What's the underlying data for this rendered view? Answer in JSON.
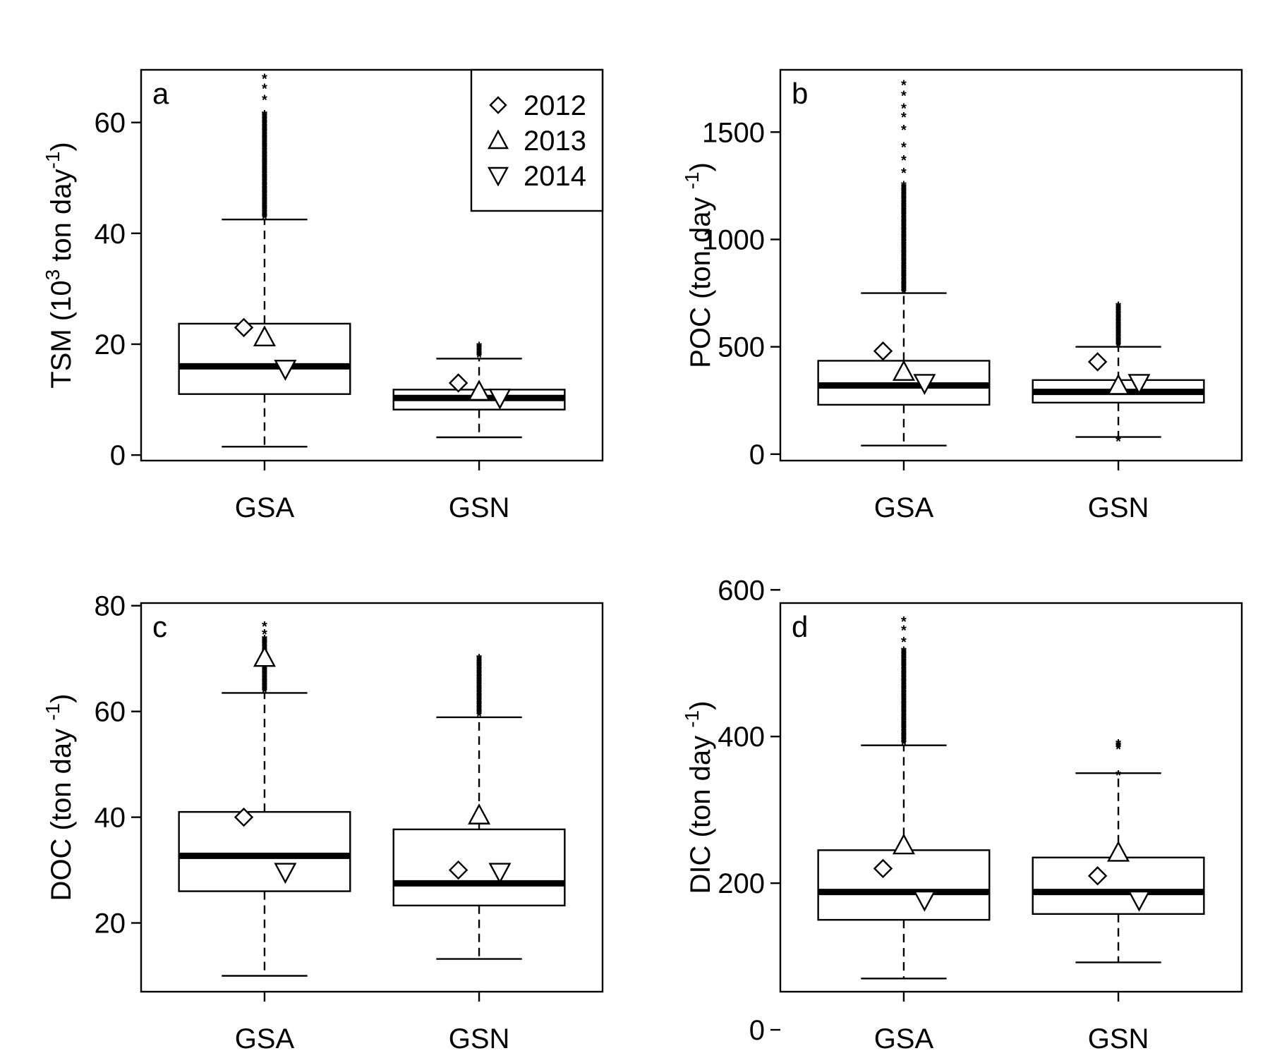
{
  "chart_data": [
    {
      "type": "box",
      "panel_label": "a",
      "ylabel": "TSM (10",
      "ylabel_sup": "3",
      "ylabel_mid": " ton day",
      "ylabel_sup2": "-1",
      "ylabel_end": ")",
      "yticks": [
        0,
        20,
        40,
        60
      ],
      "ylim": [
        -1,
        69.5
      ],
      "categories": [
        "GSA",
        "GSN"
      ],
      "legend": {
        "position": "top-right",
        "entries": [
          {
            "marker": "diamond",
            "label": "2012"
          },
          {
            "marker": "triangle-up",
            "label": "2013"
          },
          {
            "marker": "triangle-down",
            "label": "2014"
          }
        ]
      },
      "boxes": [
        {
          "category": "GSA",
          "whisker_low": 1.5,
          "q1": 11,
          "median": 16,
          "q3": 23.7,
          "whisker_high": 42.5,
          "outliers_from": 43,
          "outliers_to": 62,
          "outliers_extra": [
            64.5,
            66.5,
            68.3
          ],
          "years": {
            "2012": 23,
            "2013": 21.3,
            "2014": 15.5
          }
        },
        {
          "category": "GSN",
          "whisker_low": 3.2,
          "q1": 8.2,
          "median": 10.3,
          "q3": 11.8,
          "whisker_high": 17.4,
          "outliers_from": 18,
          "outliers_to": 20,
          "outliers_extra": [],
          "years": {
            "2012": 13,
            "2013": 11.5,
            "2014": 10.3
          }
        }
      ]
    },
    {
      "type": "box",
      "panel_label": "b",
      "ylabel": "POC (ton day ",
      "ylabel_sup": "-1",
      "ylabel_end": ")",
      "yticks": [
        0,
        500,
        1000,
        1500
      ],
      "ylim": [
        -30,
        1790
      ],
      "categories": [
        "GSA",
        "GSN"
      ],
      "boxes": [
        {
          "category": "GSA",
          "whisker_low": 40,
          "q1": 230,
          "median": 320,
          "q3": 435,
          "whisker_high": 750,
          "outliers_from": 760,
          "outliers_to": 1260,
          "outliers_extra": [
            1320,
            1380,
            1440,
            1520,
            1580,
            1620,
            1680,
            1730
          ],
          "years": {
            "2012": 480,
            "2013": 385,
            "2014": 330
          }
        },
        {
          "category": "GSN",
          "whisker_low": 80,
          "q1": 240,
          "median": 290,
          "q3": 345,
          "whisker_high": 500,
          "outliers_from": 510,
          "outliers_to": 700,
          "outliers_extra": [
            70
          ],
          "years": {
            "2012": 430,
            "2013": 320,
            "2014": 330
          }
        }
      ]
    },
    {
      "type": "box",
      "panel_label": "c",
      "ylabel": "DOC (ton day ",
      "ylabel_sup": "-1",
      "ylabel_end": ")",
      "yticks": [
        20,
        40,
        60,
        80
      ],
      "ylim": [
        7,
        80.5
      ],
      "categories": [
        "GSA",
        "GSN"
      ],
      "boxes": [
        {
          "category": "GSA",
          "whisker_low": 10,
          "q1": 26,
          "median": 32.7,
          "q3": 41,
          "whisker_high": 63.5,
          "outliers_from": 64,
          "outliers_to": 74,
          "outliers_extra": [
            75,
            76.5
          ],
          "years": {
            "2012": 40,
            "2013": 70.2,
            "2014": 29.6
          }
        },
        {
          "category": "GSN",
          "whisker_low": 13.2,
          "q1": 23.3,
          "median": 27.5,
          "q3": 37.7,
          "whisker_high": 58.9,
          "outliers_from": 59.5,
          "outliers_to": 70.5,
          "outliers_extra": [],
          "years": {
            "2012": 30,
            "2013": 40.4,
            "2014": 29.6
          }
        }
      ]
    },
    {
      "type": "box",
      "panel_label": "d",
      "ylabel": "DIC (ton day ",
      "ylabel_sup": "-1",
      "ylabel_end": ")",
      "yticks": [
        0,
        200,
        400,
        600
      ],
      "ylim": [
        52,
        582
      ],
      "categories": [
        "GSA",
        "GSN"
      ],
      "boxes": [
        {
          "category": "GSA",
          "whisker_low": 70,
          "q1": 150,
          "median": 188,
          "q3": 245,
          "whisker_high": 388,
          "outliers_from": 392,
          "outliers_to": 520,
          "outliers_extra": [
            532,
            548,
            560
          ],
          "years": {
            "2012": 220,
            "2013": 252,
            "2014": 177
          }
        },
        {
          "category": "GSN",
          "whisker_low": 92,
          "q1": 158,
          "median": 188,
          "q3": 235,
          "whisker_high": 350,
          "outliers_from": 386,
          "outliers_to": 394,
          "outliers_extra": [
            350
          ],
          "years": {
            "2012": 210,
            "2013": 242,
            "2014": 177
          }
        }
      ]
    }
  ]
}
